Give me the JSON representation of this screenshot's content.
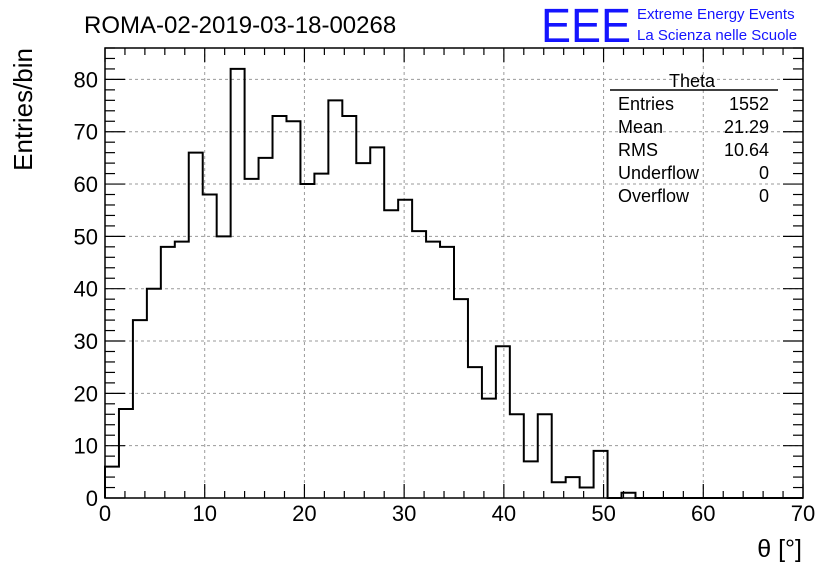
{
  "header": {
    "run_title": "ROMA-02-2019-03-18-00268",
    "logo_text": "EEE",
    "logo_line1": "Extreme Energy Events",
    "logo_line2": "La Scienza nelle Scuole",
    "logo_color": "#1414ff"
  },
  "stats_box": {
    "title": "Theta",
    "rows": [
      {
        "label": "Entries",
        "value": "1552"
      },
      {
        "label": "Mean",
        "value": "21.29"
      },
      {
        "label": "RMS",
        "value": "10.64"
      },
      {
        "label": "Underflow",
        "value": "0"
      },
      {
        "label": "Overflow",
        "value": "0"
      }
    ]
  },
  "chart_data": {
    "type": "bar",
    "style": "step-histogram",
    "title": "ROMA-02-2019-03-18-00268",
    "xlabel": "θ [°]",
    "ylabel": "Entries/bin",
    "xlim": [
      0,
      70
    ],
    "ylim": [
      0,
      86
    ],
    "bin_start": 0,
    "bin_width": 1.4,
    "values": [
      6,
      17,
      34,
      40,
      48,
      49,
      66,
      58,
      50,
      82,
      61,
      65,
      73,
      72,
      60,
      62,
      76,
      73,
      64,
      67,
      55,
      57,
      51,
      49,
      48,
      38,
      25,
      19,
      29,
      16,
      7,
      16,
      3,
      4,
      2,
      9,
      0,
      1,
      0,
      0,
      0,
      0,
      0,
      0,
      0,
      0,
      0,
      0,
      0,
      0
    ],
    "x_ticks": [
      0,
      10,
      20,
      30,
      40,
      50,
      60,
      70
    ],
    "y_ticks": [
      0,
      10,
      20,
      30,
      40,
      50,
      60,
      70,
      80
    ],
    "grid": true,
    "legend": "top-right"
  }
}
